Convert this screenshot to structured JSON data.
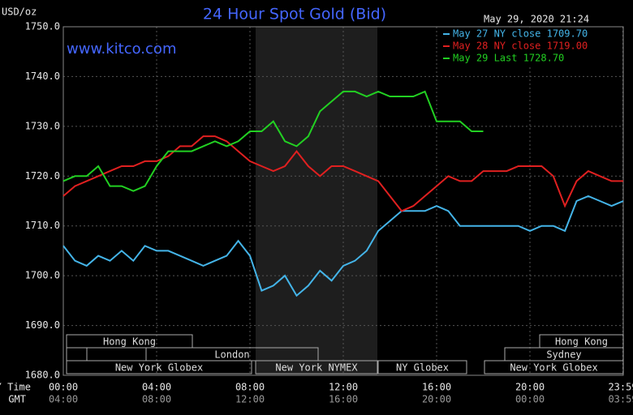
{
  "chart_data": {
    "type": "line",
    "title": "24 Hour Spot Gold (Bid)",
    "website": "www.kitco.com",
    "y_label": "USD/oz",
    "timestamp": "May 29, 2020 21:24",
    "x_label": "NY Time",
    "x2_label": "GMT",
    "xlim": [
      0,
      24
    ],
    "xticks": [
      {
        "value": 0,
        "label": "00:00"
      },
      {
        "value": 4,
        "label": "04:00"
      },
      {
        "value": 8,
        "label": "08:00"
      },
      {
        "value": 12,
        "label": "12:00"
      },
      {
        "value": 16,
        "label": "16:00"
      },
      {
        "value": 20,
        "label": "20:00"
      },
      {
        "value": 23.983,
        "label": "23:59"
      }
    ],
    "x2tick_labels": [
      "04:00",
      "08:00",
      "12:00",
      "16:00",
      "20:00",
      "00:00",
      "03:59"
    ],
    "ylim": [
      1680,
      1750
    ],
    "yticks": [
      {
        "value": 1680,
        "label": "1680.0"
      },
      {
        "value": 1690,
        "label": "1690.0"
      },
      {
        "value": 1700,
        "label": "1700.0"
      },
      {
        "value": 1710,
        "label": "1710.0"
      },
      {
        "value": 1720,
        "label": "1720.0"
      },
      {
        "value": 1730,
        "label": "1730.0"
      },
      {
        "value": 1740,
        "label": "1740.0"
      },
      {
        "value": 1750,
        "label": "1750.0"
      }
    ],
    "grid": true,
    "legend": "upper right",
    "session_labels": [
      "Hong Kong",
      "Hong Kong",
      "London",
      "Sydney",
      "New York Globex",
      "New York NYMEX",
      "NY Globex",
      "New York Globex"
    ],
    "x": [
      0,
      0.5,
      1,
      1.5,
      2,
      2.5,
      3,
      3.5,
      4,
      4.5,
      5,
      5.5,
      6,
      6.5,
      7,
      7.5,
      8,
      8.5,
      9,
      9.5,
      10,
      10.5,
      11,
      11.5,
      12,
      12.5,
      13,
      13.5,
      14,
      14.5,
      15,
      15.5,
      16,
      16.5,
      17,
      17.5,
      18,
      18.5,
      19,
      19.5,
      20,
      20.5,
      21,
      21.5,
      22,
      22.5,
      23,
      23.5,
      24
    ],
    "series": [
      {
        "name": "May 27 NY close 1709.70",
        "color": "#44b4e8",
        "values": [
          1706,
          1703,
          1702,
          1704,
          1703,
          1705,
          1703,
          1706,
          1705,
          1705,
          1704,
          1703,
          1702,
          1703,
          1704,
          1707,
          1704,
          1697,
          1698,
          1700,
          1696,
          1698,
          1701,
          1699,
          1702,
          1703,
          1705,
          1709,
          1711,
          1713,
          1713,
          1713,
          1714,
          1713,
          1710,
          1710,
          1710,
          1710,
          1710,
          1710,
          1709,
          1710,
          1710,
          1709,
          1715,
          1716,
          1715,
          1714,
          1715
        ]
      },
      {
        "name": "May 28 NY close 1719.00",
        "color": "#e02020",
        "values": [
          1716,
          1718,
          1719,
          1720,
          1721,
          1722,
          1722,
          1723,
          1723,
          1724,
          1726,
          1726,
          1728,
          1728,
          1727,
          1725,
          1723,
          1722,
          1721,
          1722,
          1725,
          1722,
          1720,
          1722,
          1722,
          1721,
          1720,
          1719,
          1716,
          1713,
          1714,
          1716,
          1718,
          1720,
          1719,
          1719,
          1721,
          1721,
          1721,
          1722,
          1722,
          1722,
          1720,
          1714,
          1719,
          1721,
          1720,
          1719,
          1719
        ]
      },
      {
        "name": "May 29 Last 1728.70",
        "color": "#22d022",
        "values": [
          1719,
          1720,
          1720,
          1722,
          1718,
          1718,
          1717,
          1718,
          1722,
          1725,
          1725,
          1725,
          1726,
          1727,
          1726,
          1727,
          1729,
          1729,
          1731,
          1727,
          1726,
          1728,
          1733,
          1735,
          1737,
          1737,
          1736,
          1737,
          1736,
          1736,
          1736,
          1737,
          1731,
          1731,
          1731,
          1729,
          1729,
          null,
          null,
          null,
          null,
          null,
          null,
          null,
          null,
          null,
          null,
          null,
          null
        ]
      }
    ]
  }
}
